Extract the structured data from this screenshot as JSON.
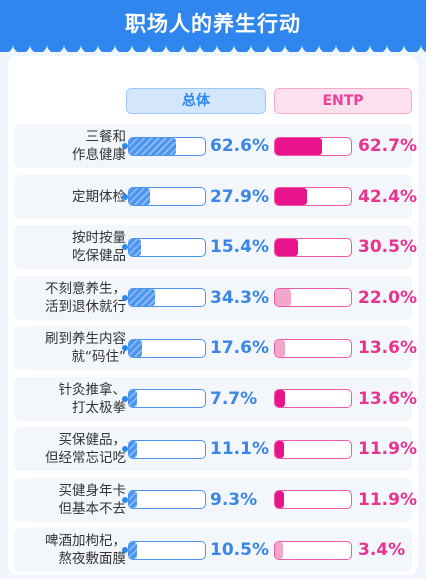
{
  "title": "职场人的养生行动",
  "colors": {
    "accent": "#2f86ee",
    "pink": "#ec3f97",
    "hot_pink": "#e8148c"
  },
  "chart_data": {
    "type": "bar",
    "title": "职场人的养生行动",
    "categories": [
      "三餐和\n作息健康",
      "定期体检",
      "按时按量\n吃保健品",
      "不刻意养生，\n活到退休就行",
      "刷到养生内容\n就“码住”",
      "针灸推拿、\n打太极拳",
      "买保健品，\n但经常忘记吃",
      "买健身年卡\n但基本不去",
      "啤酒加枸杞，\n熬夜敷面膜"
    ],
    "series": [
      {
        "name": "总体",
        "values": [
          62.6,
          27.9,
          15.4,
          34.3,
          17.6,
          7.7,
          11.1,
          9.3,
          10.5
        ],
        "labels": [
          "62.6%",
          "27.9%",
          "15.4%",
          "34.3%",
          "17.6%",
          "7.7%",
          "11.1%",
          "9.3%",
          "10.5%"
        ]
      },
      {
        "name": "ENTP",
        "values": [
          62.7,
          42.4,
          30.5,
          22.0,
          13.6,
          13.6,
          11.9,
          11.9,
          3.4
        ],
        "labels": [
          "62.7%",
          "42.4%",
          "30.5%",
          "22.0%",
          "13.6%",
          "13.6%",
          "11.9%",
          "11.9%",
          "3.4%"
        ]
      }
    ],
    "xlabel": "",
    "ylabel": "",
    "ylim": [
      0,
      100
    ],
    "legend": "top"
  }
}
